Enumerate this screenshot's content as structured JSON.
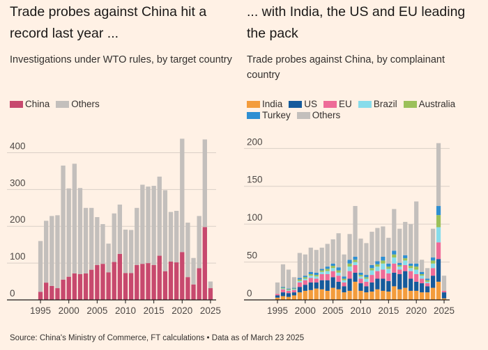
{
  "colors": {
    "background": "#fff1e5",
    "china": "#c7496e",
    "others": "#c3bfbc",
    "india": "#f39c3c",
    "us": "#155a9c",
    "eu": "#ee6b98",
    "brazil": "#87dceb",
    "australia": "#9bc05a",
    "turkey": "#2f8fd2",
    "others_right": "#c3bfbc",
    "gridline": "#d9cfc6",
    "axis": "#1a1817"
  },
  "left": {
    "title": "Trade probes against China hit a record last year ...",
    "subtitle": "Investigations under WTO rules, by target country",
    "legend": [
      {
        "label": "China",
        "color": "#c7496e"
      },
      {
        "label": "Others",
        "color": "#c3bfbc"
      }
    ]
  },
  "right": {
    "title": "... with India, the US and EU leading the pack",
    "subtitle": "Trade probes against China, by complainant country",
    "legend": [
      {
        "label": "India",
        "color": "#f39c3c"
      },
      {
        "label": "US",
        "color": "#155a9c"
      },
      {
        "label": "EU",
        "color": "#ee6b98"
      },
      {
        "label": "Brazil",
        "color": "#87dceb"
      },
      {
        "label": "Australia",
        "color": "#9bc05a"
      },
      {
        "label": "Turkey",
        "color": "#2f8fd2"
      },
      {
        "label": "Others",
        "color": "#c3bfbc"
      }
    ]
  },
  "source": "Source: China's Ministry of Commerce, FT calculations • Data as of March 23 2025",
  "chart_data": [
    {
      "type": "bar",
      "stacked": true,
      "title": "Trade probes against China hit a record last year ...",
      "subtitle": "Investigations under WTO rules, by target country",
      "x": [
        1995,
        1996,
        1997,
        1998,
        1999,
        2000,
        2001,
        2002,
        2003,
        2004,
        2005,
        2006,
        2007,
        2008,
        2009,
        2010,
        2011,
        2012,
        2013,
        2014,
        2015,
        2016,
        2017,
        2018,
        2019,
        2020,
        2021,
        2022,
        2023,
        2024,
        2025
      ],
      "xticks": [
        1995,
        2000,
        2005,
        2010,
        2015,
        2020,
        2025
      ],
      "yticks": [
        0,
        100,
        200,
        300,
        400
      ],
      "ylim": [
        0,
        450
      ],
      "grid": true,
      "legend_position": "top-left",
      "series": [
        {
          "name": "China",
          "values": [
            22,
            47,
            38,
            32,
            55,
            63,
            72,
            70,
            72,
            82,
            95,
            98,
            75,
            103,
            125,
            73,
            73,
            95,
            98,
            100,
            95,
            120,
            78,
            104,
            102,
            130,
            62,
            42,
            86,
            198,
            32
          ]
        },
        {
          "name": "Others",
          "values": [
            138,
            168,
            190,
            198,
            310,
            240,
            298,
            234,
            178,
            168,
            130,
            108,
            78,
            132,
            134,
            118,
            117,
            155,
            215,
            208,
            215,
            215,
            220,
            135,
            140,
            308,
            148,
            72,
            142,
            238,
            18
          ]
        }
      ]
    },
    {
      "type": "bar",
      "stacked": true,
      "title": "... with India, the US and EU leading the pack",
      "subtitle": "Trade probes against China, by complainant country",
      "x": [
        1995,
        1996,
        1997,
        1998,
        1999,
        2000,
        2001,
        2002,
        2003,
        2004,
        2005,
        2006,
        2007,
        2008,
        2009,
        2010,
        2011,
        2012,
        2013,
        2014,
        2015,
        2016,
        2017,
        2018,
        2019,
        2020,
        2021,
        2022,
        2023,
        2024,
        2025
      ],
      "xticks": [
        1995,
        2000,
        2005,
        2010,
        2015,
        2020,
        2025
      ],
      "yticks": [
        0,
        50,
        100,
        150,
        200
      ],
      "ylim": [
        0,
        215
      ],
      "grid": true,
      "legend_position": "top-left",
      "series": [
        {
          "name": "India",
          "values": [
            3,
            5,
            4,
            6,
            10,
            12,
            13,
            15,
            14,
            12,
            16,
            14,
            10,
            12,
            24,
            12,
            10,
            11,
            14,
            12,
            11,
            18,
            14,
            16,
            12,
            12,
            10,
            10,
            16,
            24,
            2
          ]
        },
        {
          "name": "US",
          "values": [
            3,
            5,
            5,
            4,
            7,
            8,
            10,
            8,
            12,
            14,
            14,
            10,
            8,
            16,
            12,
            10,
            8,
            12,
            14,
            16,
            14,
            18,
            20,
            22,
            16,
            12,
            12,
            8,
            16,
            30,
            8
          ]
        },
        {
          "name": "EU",
          "values": [
            2,
            4,
            3,
            3,
            6,
            6,
            6,
            5,
            8,
            8,
            8,
            8,
            5,
            10,
            10,
            6,
            6,
            10,
            10,
            12,
            10,
            12,
            6,
            8,
            10,
            10,
            6,
            4,
            10,
            22,
            2
          ]
        },
        {
          "name": "Brazil",
          "values": [
            0,
            1,
            1,
            1,
            2,
            2,
            3,
            3,
            3,
            4,
            4,
            4,
            3,
            6,
            4,
            3,
            4,
            6,
            6,
            8,
            6,
            8,
            4,
            6,
            4,
            6,
            4,
            2,
            6,
            20,
            0
          ]
        },
        {
          "name": "Australia",
          "values": [
            0,
            1,
            1,
            1,
            2,
            2,
            2,
            2,
            2,
            3,
            3,
            3,
            2,
            4,
            3,
            2,
            2,
            3,
            3,
            4,
            3,
            4,
            2,
            3,
            3,
            4,
            2,
            2,
            4,
            16,
            0
          ]
        },
        {
          "name": "Turkey",
          "values": [
            0,
            1,
            1,
            1,
            2,
            2,
            3,
            3,
            2,
            3,
            3,
            4,
            3,
            5,
            4,
            3,
            3,
            4,
            4,
            5,
            4,
            5,
            3,
            4,
            3,
            4,
            3,
            2,
            4,
            12,
            0
          ]
        },
        {
          "name": "Others",
          "values": [
            15,
            30,
            25,
            14,
            33,
            28,
            32,
            30,
            28,
            30,
            32,
            45,
            29,
            34,
            67,
            45,
            42,
            44,
            44,
            40,
            34,
            55,
            45,
            44,
            52,
            82,
            16,
            14,
            38,
            83,
            20
          ]
        }
      ]
    }
  ]
}
